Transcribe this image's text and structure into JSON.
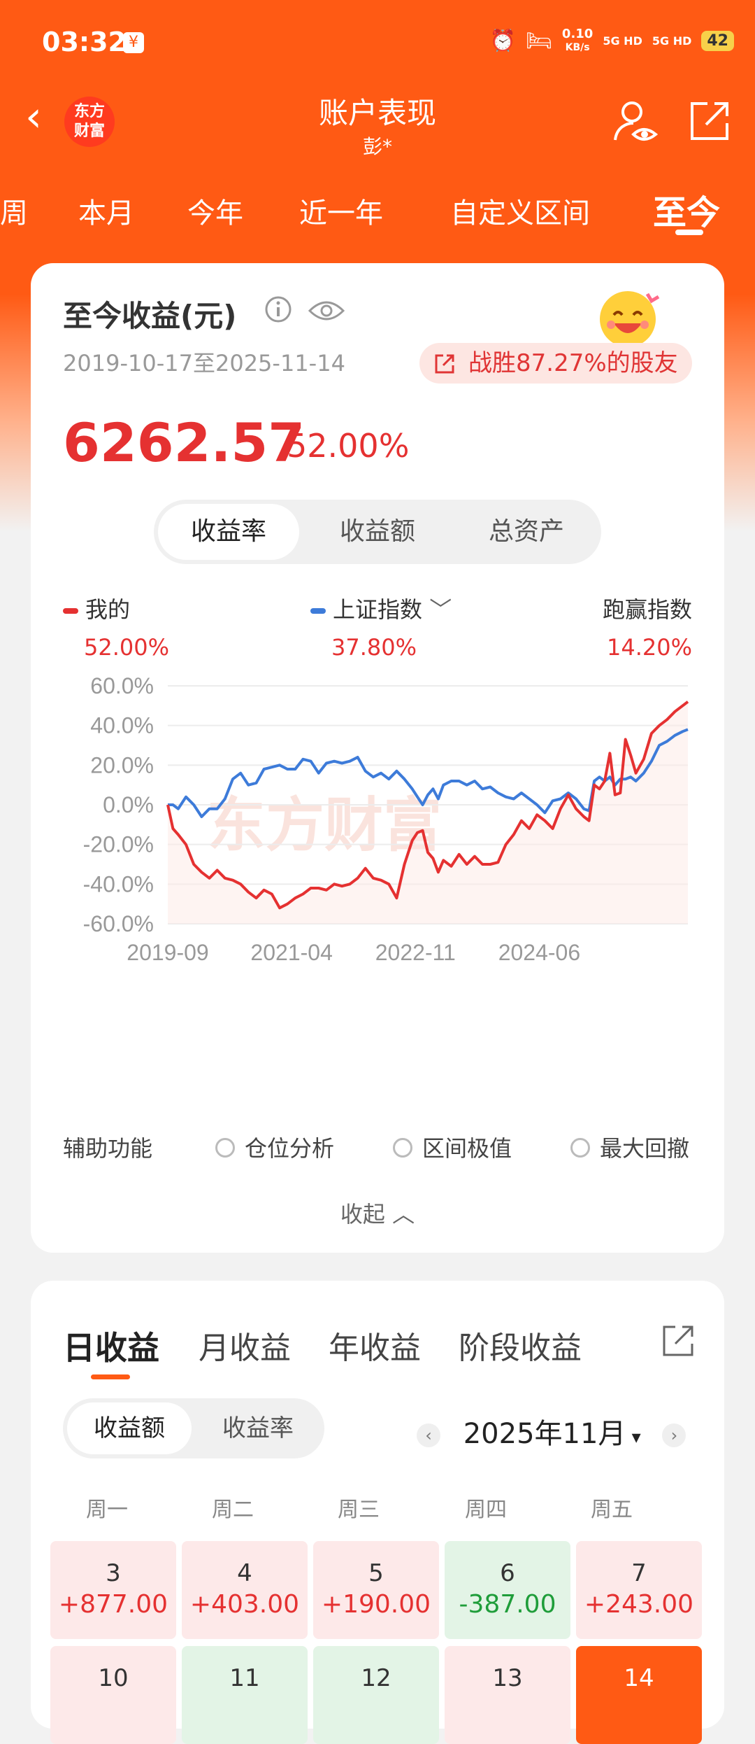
{
  "status_bar": {
    "time": "03:32",
    "app_badge": "¥",
    "net_speed_value": "0.10",
    "net_speed_unit": "KB/s",
    "signal1": "5G HD",
    "signal2": "5G HD",
    "battery": "42"
  },
  "header": {
    "title": "账户表现",
    "subtitle": "彭*",
    "logo_line1": "东方",
    "logo_line2": "财富",
    "back_glyph": "‹"
  },
  "period_tabs": [
    "周",
    "本月",
    "今年",
    "近一年",
    "自定义区间",
    "至今"
  ],
  "summary": {
    "title": "至今收益(元)",
    "date_range": "2019-10-17至2025-11-14",
    "beat_text": "战胜87.27%的股友",
    "amount": "6262.57",
    "percent": "52.00%"
  },
  "metric_tabs": [
    "收益率",
    "收益额",
    "总资产"
  ],
  "legend": {
    "mine_label": "我的",
    "mine_value": "52.00%",
    "index_label": "上证指数",
    "index_value": "37.80%",
    "outperform_label": "跑赢指数",
    "outperform_value": "14.20%"
  },
  "watermark": "东方财富",
  "chart_data": {
    "type": "line",
    "y_tick_labels": [
      "60.0%",
      "40.0%",
      "20.0%",
      "0.0%",
      "-20.0%",
      "-40.0%",
      "-60.0%"
    ],
    "x_tick_labels": [
      "2019-09",
      "2021-04",
      "2022-11",
      "2024-06"
    ],
    "ylim": [
      -60,
      60
    ],
    "xlim": [
      0,
      1
    ],
    "grid": true,
    "series": [
      {
        "name": "我的",
        "color": "#e53131",
        "x": [
          0.0,
          0.01,
          0.02,
          0.035,
          0.05,
          0.065,
          0.08,
          0.095,
          0.11,
          0.125,
          0.14,
          0.155,
          0.17,
          0.185,
          0.2,
          0.215,
          0.23,
          0.245,
          0.26,
          0.275,
          0.29,
          0.305,
          0.32,
          0.335,
          0.35,
          0.365,
          0.38,
          0.395,
          0.41,
          0.425,
          0.44,
          0.455,
          0.47,
          0.48,
          0.49,
          0.5,
          0.51,
          0.52,
          0.53,
          0.545,
          0.56,
          0.575,
          0.59,
          0.605,
          0.62,
          0.635,
          0.65,
          0.665,
          0.68,
          0.695,
          0.71,
          0.725,
          0.74,
          0.755,
          0.77,
          0.785,
          0.8,
          0.81,
          0.82,
          0.83,
          0.84,
          0.85,
          0.86,
          0.87,
          0.88,
          0.89,
          0.9,
          0.915,
          0.93,
          0.945,
          0.96,
          0.975,
          0.99,
          1.0
        ],
        "values": [
          0,
          -12,
          -15,
          -20,
          -30,
          -34,
          -37,
          -33,
          -37,
          -38,
          -40,
          -44,
          -47,
          -43,
          -45,
          -52,
          -50,
          -47,
          -45,
          -42,
          -42,
          -43,
          -40,
          -41,
          -40,
          -37,
          -32,
          -37,
          -38,
          -40,
          -47,
          -30,
          -18,
          -14,
          -13,
          -24,
          -27,
          -34,
          -28,
          -31,
          -25,
          -30,
          -26,
          -30,
          -30,
          -29,
          -20,
          -15,
          -8,
          -12,
          -5,
          -8,
          -12,
          -2,
          5,
          -2,
          -6,
          -8,
          10,
          8,
          12,
          26,
          5,
          6,
          33,
          25,
          16,
          23,
          36,
          40,
          43,
          47,
          50,
          52
        ]
      },
      {
        "name": "上证指数",
        "color": "#3d7bd9",
        "x": [
          0.0,
          0.01,
          0.02,
          0.035,
          0.05,
          0.065,
          0.08,
          0.095,
          0.11,
          0.125,
          0.14,
          0.155,
          0.17,
          0.185,
          0.2,
          0.215,
          0.23,
          0.245,
          0.26,
          0.275,
          0.29,
          0.305,
          0.32,
          0.335,
          0.35,
          0.365,
          0.38,
          0.395,
          0.41,
          0.425,
          0.44,
          0.455,
          0.47,
          0.48,
          0.49,
          0.5,
          0.51,
          0.52,
          0.53,
          0.545,
          0.56,
          0.575,
          0.59,
          0.605,
          0.62,
          0.635,
          0.65,
          0.665,
          0.68,
          0.695,
          0.71,
          0.725,
          0.74,
          0.755,
          0.77,
          0.785,
          0.8,
          0.81,
          0.82,
          0.83,
          0.84,
          0.85,
          0.86,
          0.87,
          0.88,
          0.89,
          0.9,
          0.915,
          0.93,
          0.945,
          0.96,
          0.975,
          0.99,
          1.0
        ],
        "values": [
          0,
          0,
          -2,
          4,
          0,
          -6,
          -2,
          -2,
          3,
          13,
          16,
          10,
          11,
          18,
          19,
          20,
          18,
          18,
          23,
          22,
          16,
          21,
          22,
          21,
          22,
          24,
          17,
          14,
          16,
          13,
          17,
          13,
          8,
          4,
          0,
          5,
          8,
          3,
          10,
          12,
          12,
          10,
          12,
          8,
          9,
          6,
          4,
          3,
          6,
          3,
          0,
          -4,
          2,
          3,
          6,
          3,
          -2,
          -3,
          12,
          14,
          12,
          14,
          10,
          13,
          13,
          14,
          12,
          16,
          22,
          30,
          32,
          35,
          37,
          38
        ]
      }
    ]
  },
  "aux": {
    "label": "辅助功能",
    "options": [
      "仓位分析",
      "区间极值",
      "最大回撤"
    ],
    "collapse": "收起"
  },
  "income_tabs": [
    "日收益",
    "月收益",
    "年收益",
    "阶段收益"
  ],
  "calendar": {
    "seg": [
      "收益额",
      "收益率"
    ],
    "month": "2025年11月",
    "weekdays": [
      "周一",
      "周二",
      "周三",
      "周四",
      "周五"
    ],
    "row1": [
      {
        "day": "3",
        "value": "+877.00"
      },
      {
        "day": "4",
        "value": "+403.00"
      },
      {
        "day": "5",
        "value": "+190.00"
      },
      {
        "day": "6",
        "value": "-387.00"
      },
      {
        "day": "7",
        "value": "+243.00"
      }
    ],
    "row2": [
      {
        "day": "10"
      },
      {
        "day": "11"
      },
      {
        "day": "12"
      },
      {
        "day": "13"
      },
      {
        "day": "14"
      }
    ]
  }
}
